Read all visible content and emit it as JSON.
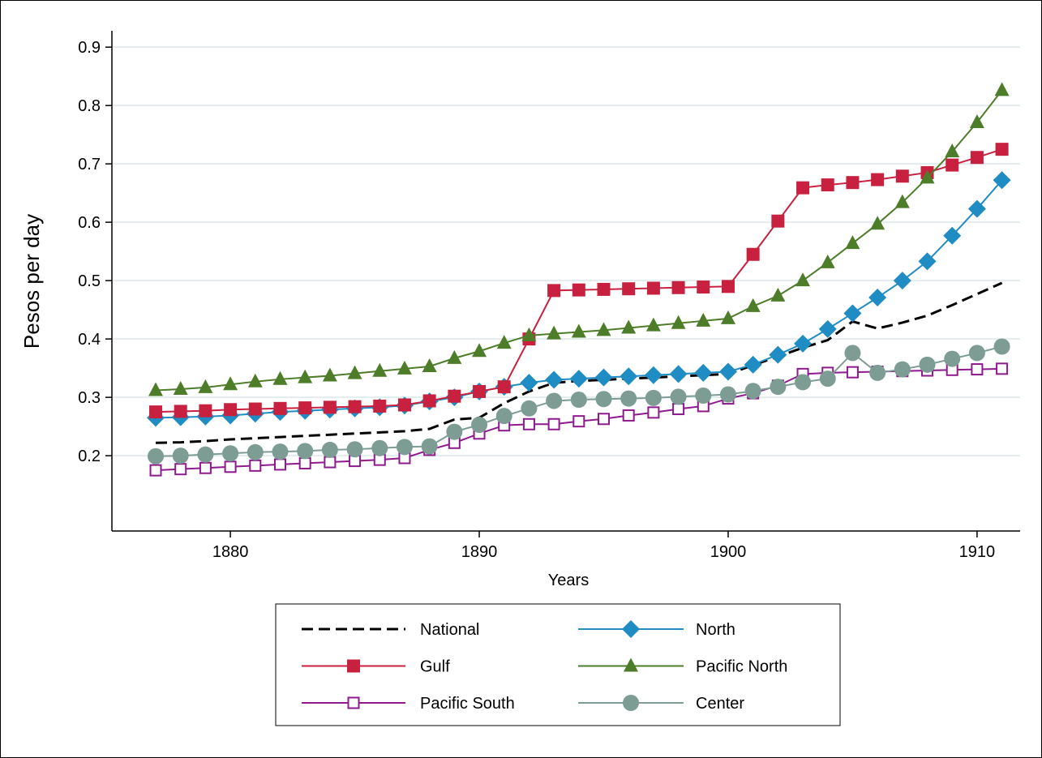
{
  "chart_data": {
    "type": "line",
    "x_label": "Years",
    "y_label": "Pesos per day",
    "x": [
      1877,
      1878,
      1879,
      1880,
      1881,
      1882,
      1883,
      1884,
      1885,
      1886,
      1887,
      1888,
      1889,
      1890,
      1891,
      1892,
      1893,
      1894,
      1895,
      1896,
      1897,
      1898,
      1899,
      1900,
      1901,
      1902,
      1903,
      1904,
      1905,
      1906,
      1907,
      1908,
      1909,
      1910,
      1911
    ],
    "xlim": [
      1875.24,
      1911.73
    ],
    "xticks": [
      1880,
      1890,
      1900,
      1910
    ],
    "ylim": [
      0.071,
      0.928
    ],
    "yticks": [
      0.2,
      0.3,
      0.4,
      0.5,
      0.6,
      0.7,
      0.8,
      0.9
    ],
    "grid": true,
    "legend": "bottom",
    "series": [
      {
        "name": "National",
        "color": "#000000",
        "marker": "none",
        "dashed": true,
        "values": [
          0.222,
          0.223,
          0.225,
          0.228,
          0.23,
          0.232,
          0.234,
          0.236,
          0.238,
          0.24,
          0.242,
          0.246,
          0.262,
          0.265,
          0.29,
          0.31,
          0.325,
          0.328,
          0.33,
          0.332,
          0.334,
          0.336,
          0.338,
          0.34,
          0.355,
          0.37,
          0.385,
          0.398,
          0.43,
          0.418,
          0.428,
          0.44,
          0.458,
          0.477,
          0.496
        ]
      },
      {
        "name": "North",
        "color": "#1f8cc4",
        "marker": "diamond",
        "values": [
          0.265,
          0.266,
          0.267,
          0.269,
          0.272,
          0.275,
          0.277,
          0.279,
          0.281,
          0.283,
          0.286,
          0.293,
          0.3,
          0.31,
          0.318,
          0.325,
          0.33,
          0.332,
          0.334,
          0.336,
          0.338,
          0.34,
          0.342,
          0.344,
          0.356,
          0.373,
          0.392,
          0.417,
          0.444,
          0.471,
          0.5,
          0.533,
          0.577,
          0.623,
          0.672
        ]
      },
      {
        "name": "Gulf",
        "color": "#c8203f",
        "marker": "square",
        "values": [
          0.275,
          0.276,
          0.277,
          0.279,
          0.28,
          0.281,
          0.282,
          0.283,
          0.284,
          0.285,
          0.287,
          0.294,
          0.302,
          0.31,
          0.318,
          0.4,
          0.483,
          0.484,
          0.485,
          0.486,
          0.487,
          0.488,
          0.489,
          0.49,
          0.545,
          0.602,
          0.659,
          0.664,
          0.668,
          0.673,
          0.679,
          0.685,
          0.698,
          0.711,
          0.725
        ]
      },
      {
        "name": "Pacific North",
        "color": "#4e7d2a",
        "marker": "triangle",
        "values": [
          0.312,
          0.314,
          0.317,
          0.322,
          0.327,
          0.331,
          0.334,
          0.337,
          0.341,
          0.345,
          0.349,
          0.353,
          0.367,
          0.379,
          0.393,
          0.406,
          0.409,
          0.412,
          0.415,
          0.419,
          0.423,
          0.427,
          0.431,
          0.435,
          0.456,
          0.474,
          0.5,
          0.531,
          0.564,
          0.597,
          0.634,
          0.676,
          0.721,
          0.771,
          0.826
        ]
      },
      {
        "name": "Pacific South",
        "color": "#8e1a8e",
        "marker": "hollow-square",
        "values": [
          0.175,
          0.177,
          0.179,
          0.181,
          0.183,
          0.185,
          0.187,
          0.189,
          0.191,
          0.193,
          0.196,
          0.21,
          0.222,
          0.238,
          0.252,
          0.254,
          0.254,
          0.259,
          0.263,
          0.269,
          0.274,
          0.28,
          0.285,
          0.298,
          0.307,
          0.32,
          0.34,
          0.342,
          0.343,
          0.344,
          0.345,
          0.346,
          0.347,
          0.348,
          0.349
        ]
      },
      {
        "name": "Center",
        "color": "#7c9c94",
        "marker": "circle",
        "values": [
          0.199,
          0.2,
          0.202,
          0.204,
          0.206,
          0.207,
          0.208,
          0.21,
          0.211,
          0.213,
          0.215,
          0.216,
          0.241,
          0.253,
          0.268,
          0.281,
          0.294,
          0.296,
          0.297,
          0.298,
          0.299,
          0.301,
          0.303,
          0.305,
          0.311,
          0.318,
          0.326,
          0.332,
          0.376,
          0.342,
          0.348,
          0.356,
          0.366,
          0.376,
          0.387
        ]
      }
    ]
  }
}
